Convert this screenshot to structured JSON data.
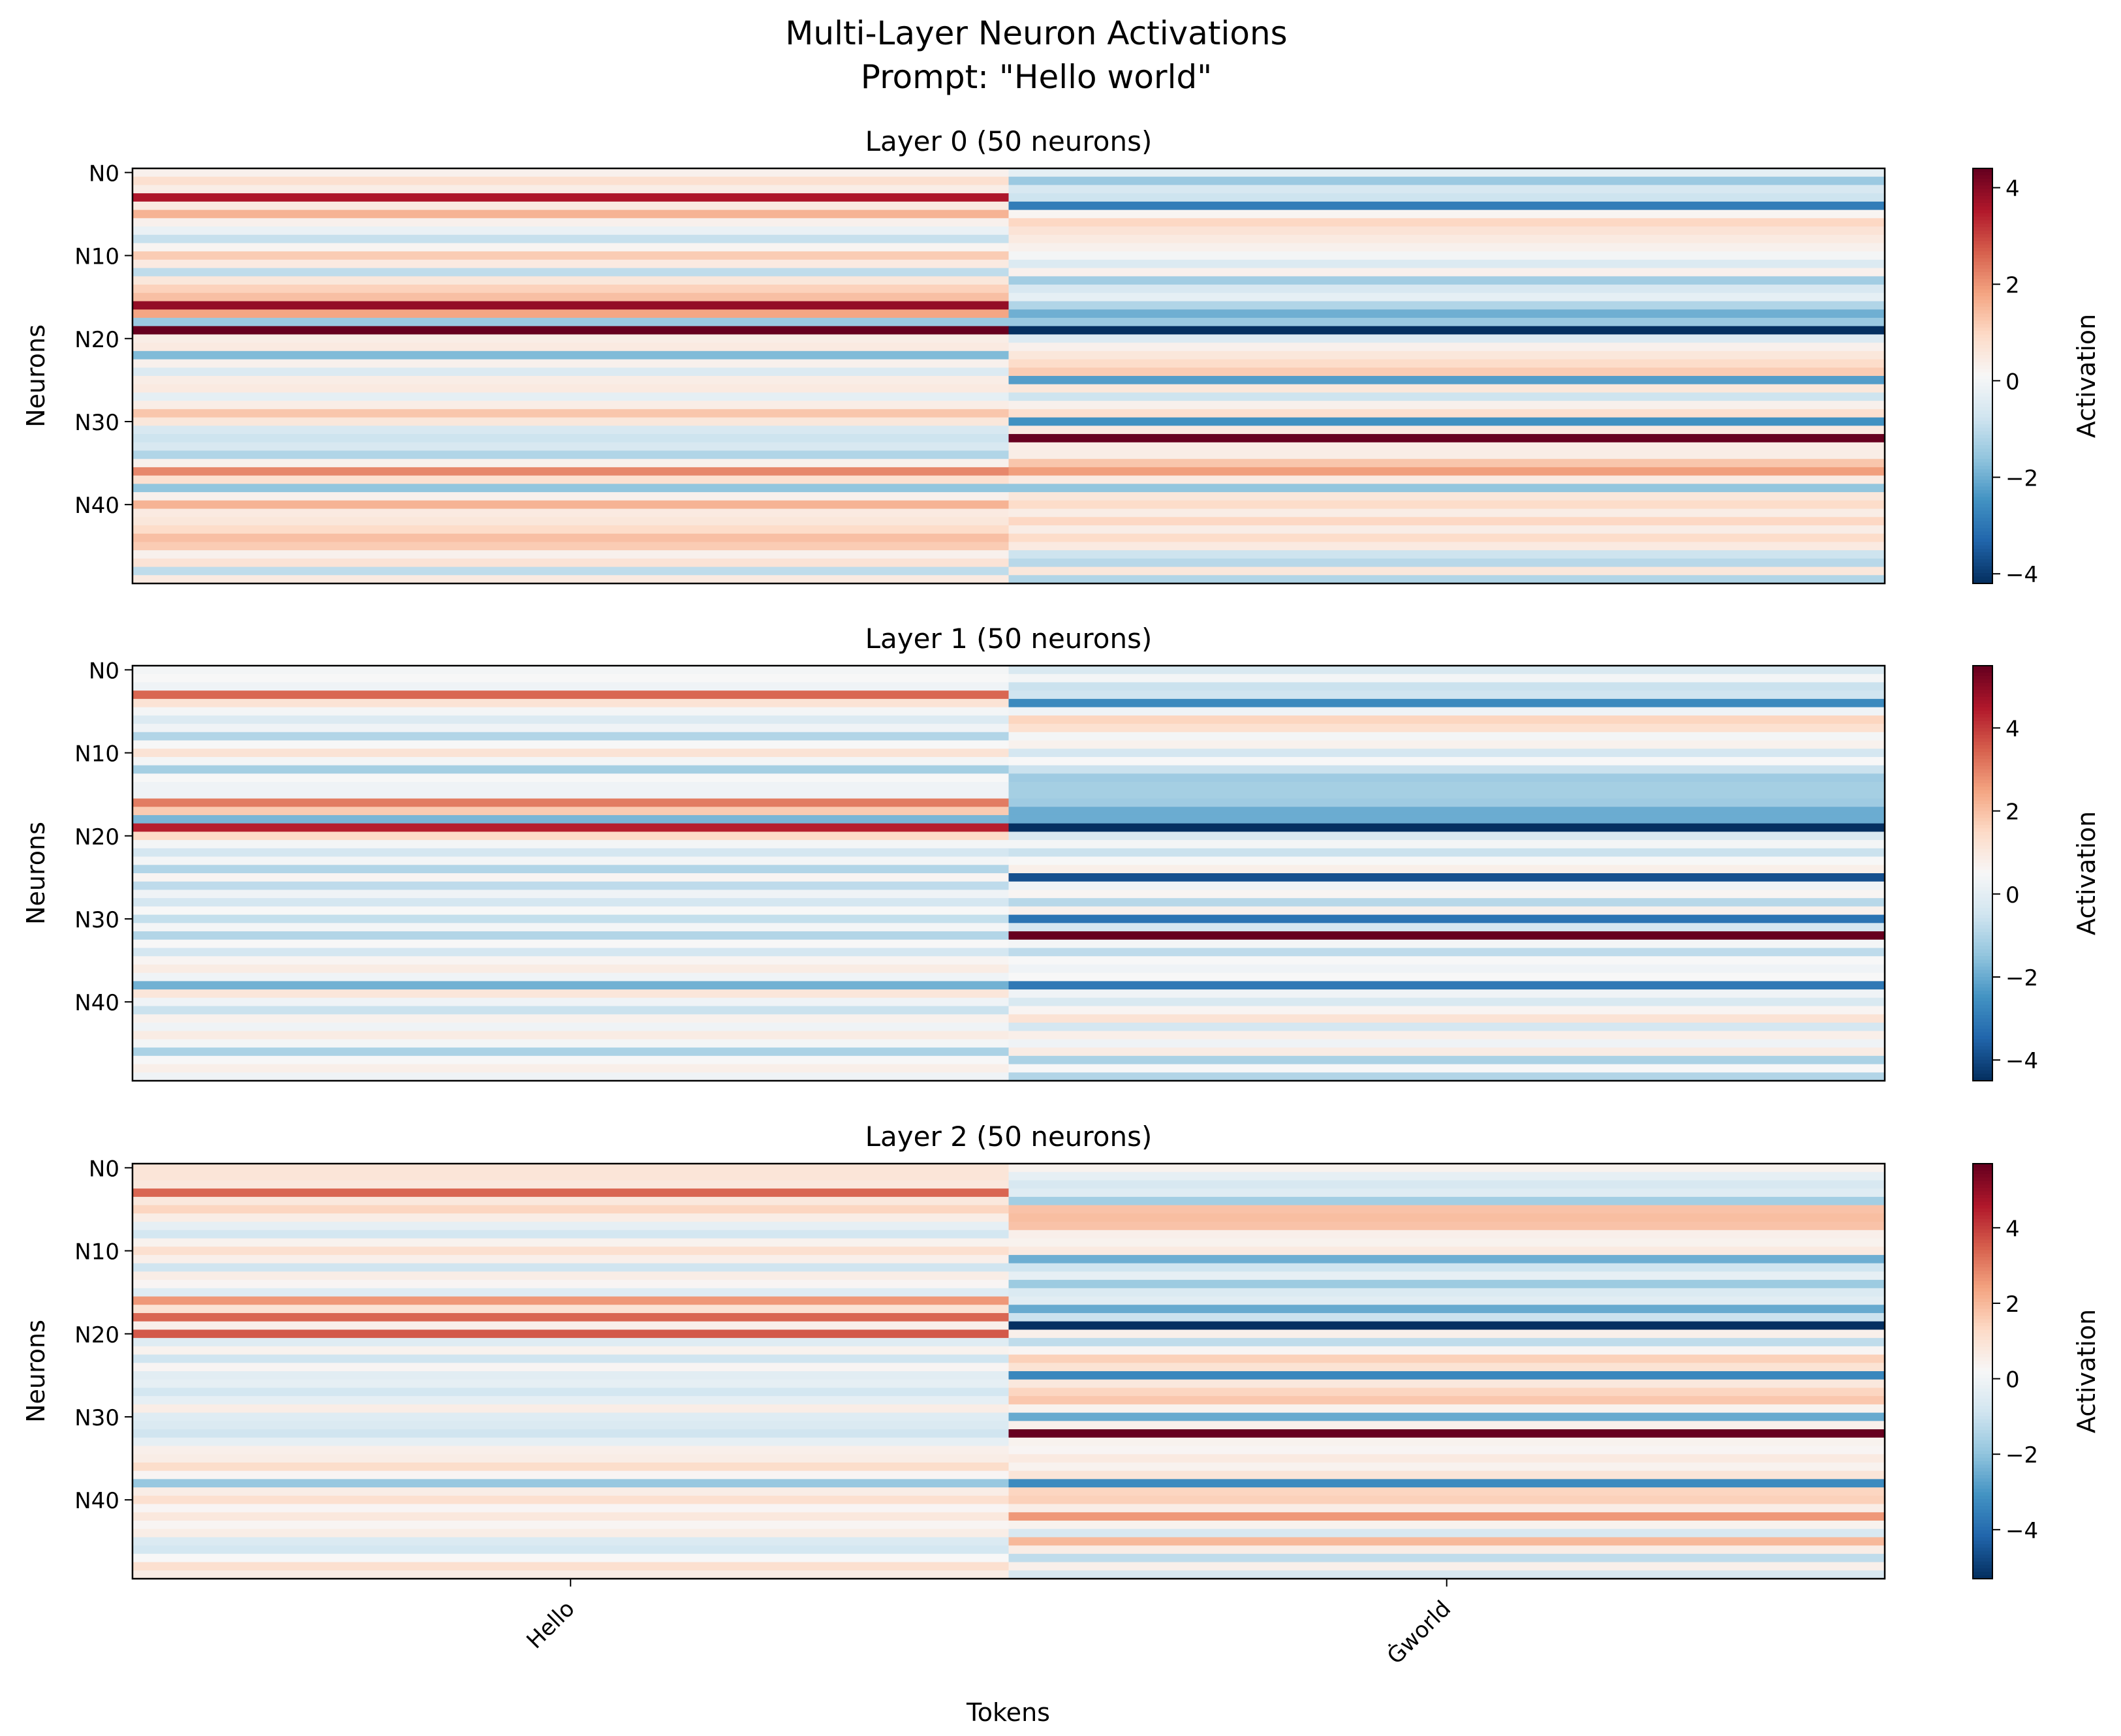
{
  "title_line1": "Multi-Layer Neuron Activations",
  "title_line2": "Prompt: \"Hello world\"",
  "chart_data": {
    "type": "heatmap",
    "colormap": "RdBu_r",
    "xlabel": "Tokens",
    "ylabel": "Neurons",
    "colorbar_label": "Activation",
    "tokens": [
      "Hello",
      "Ġworld"
    ],
    "neuron_tick_labels": [
      "N0",
      "N10",
      "N20",
      "N30",
      "N40"
    ],
    "neuron_tick_indices": [
      0,
      10,
      20,
      30,
      40
    ],
    "layers": [
      {
        "title": "Layer 0 (50 neurons)",
        "vmin": -4.2,
        "vmax": 4.4,
        "colorbar_ticks": [
          -4,
          -2,
          0,
          2,
          4
        ],
        "colorbar_tick_labels": [
          "−4",
          "−2",
          "0",
          "2",
          "4"
        ],
        "values": [
          [
            0.3,
            -0.3
          ],
          [
            0.8,
            -1.5
          ],
          [
            0.4,
            -0.6
          ],
          [
            3.6,
            -0.8
          ],
          [
            0.5,
            -2.9
          ],
          [
            1.6,
            0.2
          ],
          [
            0.3,
            1.0
          ],
          [
            -0.2,
            0.7
          ],
          [
            -0.9,
            0.5
          ],
          [
            0.2,
            0.3
          ],
          [
            1.2,
            0.0
          ],
          [
            0.5,
            -0.5
          ],
          [
            -1.0,
            0.3
          ],
          [
            0.6,
            -1.4
          ],
          [
            1.1,
            -0.6
          ],
          [
            1.4,
            -0.3
          ],
          [
            3.9,
            -1.2
          ],
          [
            1.8,
            -2.0
          ],
          [
            -1.5,
            -1.5
          ],
          [
            4.4,
            -4.2
          ],
          [
            0.4,
            -0.5
          ],
          [
            0.5,
            0.3
          ],
          [
            -1.8,
            0.6
          ],
          [
            0.3,
            0.9
          ],
          [
            -0.5,
            1.2
          ],
          [
            0.4,
            -2.3
          ],
          [
            0.5,
            0.6
          ],
          [
            -0.3,
            -0.8
          ],
          [
            0.4,
            0.3
          ],
          [
            1.3,
            0.8
          ],
          [
            0.6,
            -2.5
          ],
          [
            -0.6,
            0.5
          ],
          [
            -0.8,
            4.4
          ],
          [
            -0.6,
            0.4
          ],
          [
            -1.2,
            0.4
          ],
          [
            0.3,
            1.3
          ],
          [
            2.2,
            1.9
          ],
          [
            0.8,
            0.5
          ],
          [
            -1.6,
            -1.6
          ],
          [
            0.3,
            0.6
          ],
          [
            1.6,
            0.9
          ],
          [
            0.5,
            0.4
          ],
          [
            0.6,
            1.0
          ],
          [
            0.9,
            0.4
          ],
          [
            1.4,
            0.9
          ],
          [
            1.2,
            0.5
          ],
          [
            0.3,
            -0.8
          ],
          [
            0.7,
            -1.1
          ],
          [
            -1.0,
            0.6
          ],
          [
            0.5,
            -1.2
          ]
        ]
      },
      {
        "title": "Layer 1 (50 neurons)",
        "vmin": -4.5,
        "vmax": 5.5,
        "colorbar_ticks": [
          -4,
          -2,
          0,
          2,
          4
        ],
        "colorbar_tick_labels": [
          "−4",
          "−2",
          "0",
          "2",
          "4"
        ],
        "values": [
          [
            0.4,
            -0.3
          ],
          [
            0.5,
            0.4
          ],
          [
            0.3,
            -0.6
          ],
          [
            3.4,
            -0.5
          ],
          [
            1.2,
            -2.7
          ],
          [
            0.4,
            0.3
          ],
          [
            -0.2,
            1.6
          ],
          [
            0.3,
            1.3
          ],
          [
            -1.0,
            0.4
          ],
          [
            0.5,
            0.7
          ],
          [
            1.2,
            -0.4
          ],
          [
            0.4,
            0.5
          ],
          [
            -1.2,
            -0.6
          ],
          [
            0.5,
            -1.3
          ],
          [
            0.3,
            -1.2
          ],
          [
            0.3,
            -1.2
          ],
          [
            3.1,
            -1.3
          ],
          [
            1.8,
            -2.0
          ],
          [
            -1.8,
            -2.0
          ],
          [
            4.4,
            -4.5
          ],
          [
            1.5,
            -0.3
          ],
          [
            0.4,
            0.4
          ],
          [
            -0.4,
            -0.6
          ],
          [
            0.4,
            0.5
          ],
          [
            -1.0,
            0.8
          ],
          [
            0.6,
            -3.9
          ],
          [
            -0.8,
            0.3
          ],
          [
            0.3,
            0.6
          ],
          [
            -0.4,
            -0.9
          ],
          [
            0.5,
            0.7
          ],
          [
            -0.7,
            -3.2
          ],
          [
            0.4,
            -0.4
          ],
          [
            -1.0,
            5.5
          ],
          [
            0.5,
            0.4
          ],
          [
            -0.4,
            -0.8
          ],
          [
            0.6,
            0.5
          ],
          [
            0.9,
            0.3
          ],
          [
            0.3,
            0.5
          ],
          [
            -1.9,
            -3.1
          ],
          [
            1.1,
            0.3
          ],
          [
            0.3,
            -0.3
          ],
          [
            -0.6,
            0.6
          ],
          [
            0.7,
            1.2
          ],
          [
            0.3,
            -0.4
          ],
          [
            0.9,
            0.8
          ],
          [
            0.4,
            0.3
          ],
          [
            -1.1,
            0.9
          ],
          [
            0.5,
            -1.1
          ],
          [
            0.8,
            0.5
          ],
          [
            0.3,
            -1.0
          ]
        ]
      },
      {
        "title": "Layer 2 (50 neurons)",
        "vmin": -5.3,
        "vmax": 5.7,
        "colorbar_ticks": [
          -4,
          -2,
          0,
          2,
          4
        ],
        "colorbar_tick_labels": [
          "−4",
          "−2",
          "0",
          "2",
          "4"
        ],
        "values": [
          [
            0.9,
            0.4
          ],
          [
            0.9,
            -0.3
          ],
          [
            0.8,
            -0.7
          ],
          [
            3.4,
            -0.5
          ],
          [
            0.8,
            -1.7
          ],
          [
            1.4,
            1.8
          ],
          [
            0.6,
            1.9
          ],
          [
            -0.3,
            1.8
          ],
          [
            -0.8,
            0.5
          ],
          [
            0.4,
            0.4
          ],
          [
            1.1,
            0.7
          ],
          [
            0.5,
            -2.5
          ],
          [
            -0.9,
            -0.9
          ],
          [
            0.6,
            -0.3
          ],
          [
            0.3,
            -1.8
          ],
          [
            -0.5,
            -0.6
          ],
          [
            2.6,
            -0.4
          ],
          [
            1.0,
            -2.6
          ],
          [
            3.4,
            -1.0
          ],
          [
            0.5,
            -5.3
          ],
          [
            3.6,
            0.5
          ],
          [
            -0.5,
            -1.2
          ],
          [
            0.4,
            0.3
          ],
          [
            -0.9,
            1.5
          ],
          [
            0.3,
            1.0
          ],
          [
            -0.4,
            -3.4
          ],
          [
            -0.3,
            0.8
          ],
          [
            -0.8,
            1.4
          ],
          [
            -0.3,
            1.7
          ],
          [
            0.6,
            0.4
          ],
          [
            -0.5,
            -2.6
          ],
          [
            -0.6,
            0.5
          ],
          [
            -0.9,
            5.7
          ],
          [
            -0.3,
            0.4
          ],
          [
            0.5,
            0.3
          ],
          [
            0.6,
            0.7
          ],
          [
            1.2,
            0.4
          ],
          [
            0.3,
            0.9
          ],
          [
            -1.9,
            -3.3
          ],
          [
            0.6,
            1.4
          ],
          [
            1.1,
            1.5
          ],
          [
            0.3,
            0.6
          ],
          [
            0.8,
            2.6
          ],
          [
            0.3,
            0.4
          ],
          [
            0.6,
            -0.7
          ],
          [
            -0.6,
            2.0
          ],
          [
            -0.8,
            0.6
          ],
          [
            0.2,
            -1.2
          ],
          [
            1.1,
            0.5
          ],
          [
            0.6,
            -0.7
          ]
        ]
      }
    ]
  }
}
